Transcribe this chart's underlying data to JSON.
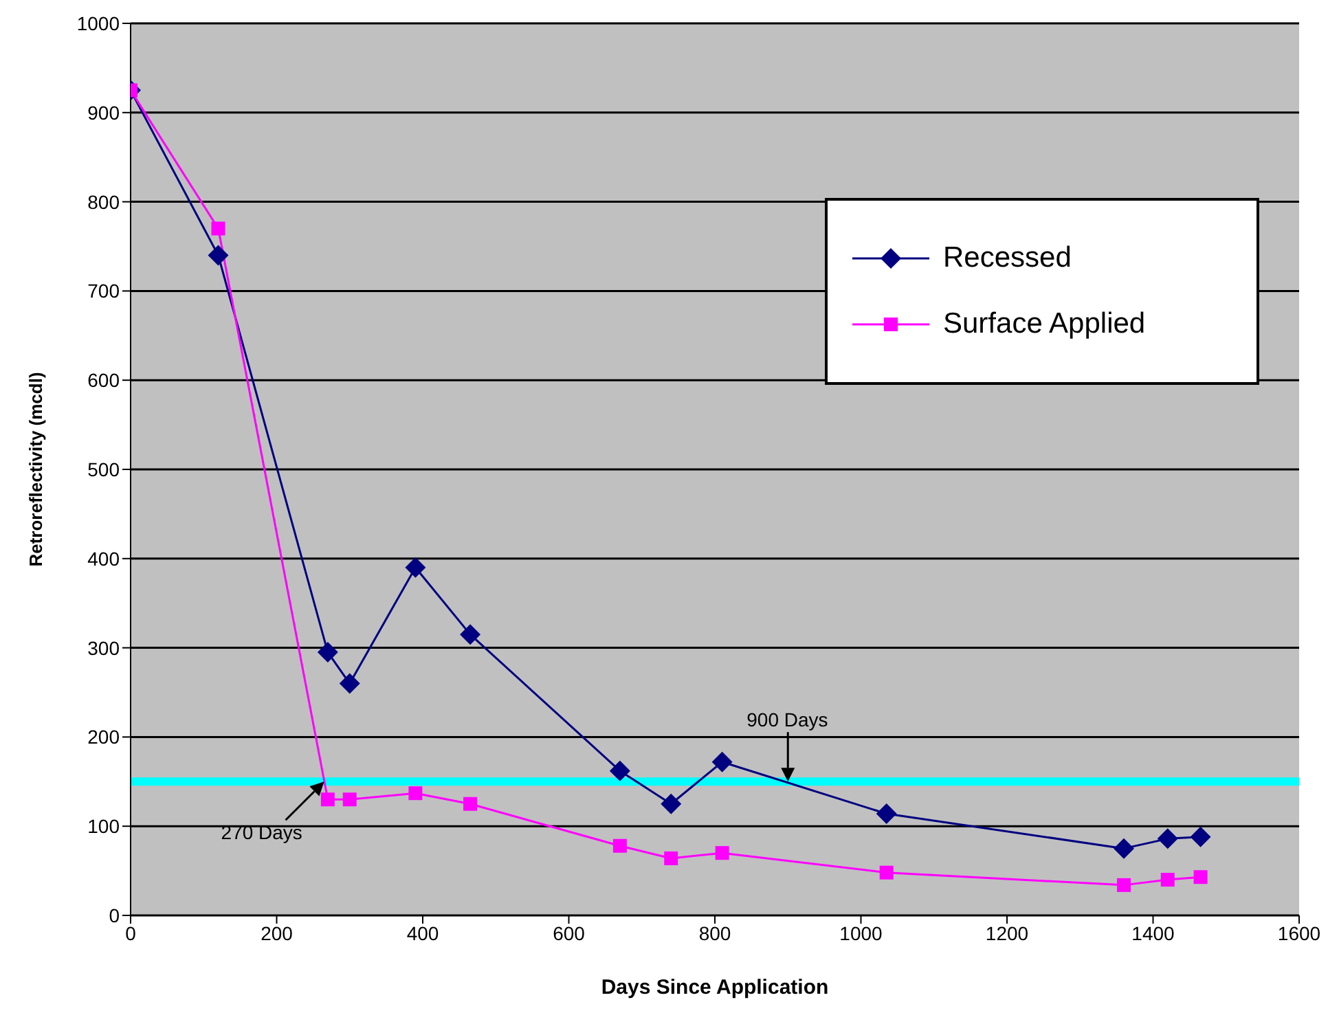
{
  "chart_data": {
    "type": "line",
    "xlabel": "Days Since Application",
    "ylabel": "Retroreflectivity (mcdl)",
    "x": [
      0,
      120,
      270,
      300,
      390,
      465,
      670,
      740,
      810,
      1035,
      1360,
      1420,
      1465
    ],
    "series": [
      {
        "name": "Recessed",
        "color": "#000080",
        "marker": "diamond",
        "values": [
          925,
          740,
          295,
          260,
          390,
          315,
          162,
          125,
          172,
          114,
          75,
          86,
          88
        ]
      },
      {
        "name": "Surface Applied",
        "color": "#ff00ff",
        "marker": "square",
        "values": [
          925,
          770,
          130,
          130,
          137,
          125,
          78,
          64,
          70,
          48,
          34,
          40,
          43
        ]
      }
    ],
    "xlim": [
      0,
      1600
    ],
    "xticks": [
      0,
      200,
      400,
      600,
      800,
      1000,
      1200,
      1400,
      1600
    ],
    "ylim": [
      0,
      1000
    ],
    "yticks": [
      0,
      100,
      200,
      300,
      400,
      500,
      600,
      700,
      800,
      900,
      1000
    ],
    "grid": "y",
    "legend": "top right",
    "line_style": "solid",
    "ref_lines": [
      {
        "axis": "y",
        "value": 150,
        "color": "#00ffff"
      }
    ],
    "annotations": [
      {
        "text": "270 Days",
        "x": 265,
        "y": 150
      },
      {
        "text": "900 Days",
        "x": 900,
        "y": 150
      }
    ]
  }
}
